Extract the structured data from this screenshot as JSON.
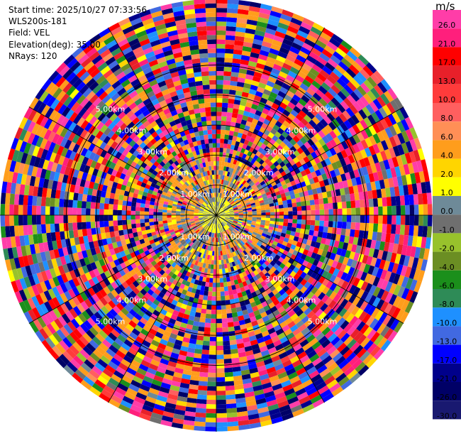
{
  "header": {
    "start_time": "Start time: 2025/10/27 07:33:56",
    "instrument": "WLS200s-181",
    "field": "Field: VEL",
    "elevation": "Elevation(deg): 35.00",
    "nrays": "NRays: 120"
  },
  "colorbar": {
    "unit": "m/s",
    "ticks": [
      "26.0",
      "21.0",
      "17.0",
      "13.0",
      "10.0",
      "8.0",
      "6.0",
      "4.0",
      "2.0",
      "1.0",
      "0.0",
      "-1.0",
      "-2.0",
      "-4.0",
      "-6.0",
      "-8.0",
      "-10.0",
      "-13.0",
      "-17.0",
      "-21.0",
      "-26.0",
      "-30.0"
    ],
    "colors": [
      "#ff3da8",
      "#ff1f7c",
      "#ff0000",
      "#e8202a",
      "#ff3b3b",
      "#ff5f5f",
      "#ff8f56",
      "#ff9d1c",
      "#ffd500",
      "#ffff00",
      "#6e8a98",
      "#6f6f6f",
      "#98c22c",
      "#6b8e23",
      "#1b8f1b",
      "#2e8b57",
      "#1e90ff",
      "#4169e1",
      "#0000ff",
      "#00008b",
      "#000066",
      "#191970"
    ]
  },
  "chart_data": {
    "type": "ppi",
    "title": "",
    "field": "VEL",
    "elevation_deg": 35.0,
    "n_rays": 120,
    "range_rings_km": [
      1.0,
      2.0,
      3.0,
      4.0,
      5.0
    ],
    "ring_labels": [
      "1.00km",
      "2.00km",
      "3.00km",
      "4.00km",
      "5.00km"
    ],
    "max_range_km": 7.2,
    "n_gates": 48,
    "spoke_interval_deg": 30,
    "velocity_range": [
      -30.0,
      26.0
    ],
    "inner_region_km": 2.0,
    "inner_dominant_values": [
      0.0,
      -1.0,
      -2.0,
      4.0,
      2.0
    ],
    "outer_dominant": "random noise across full scale"
  }
}
